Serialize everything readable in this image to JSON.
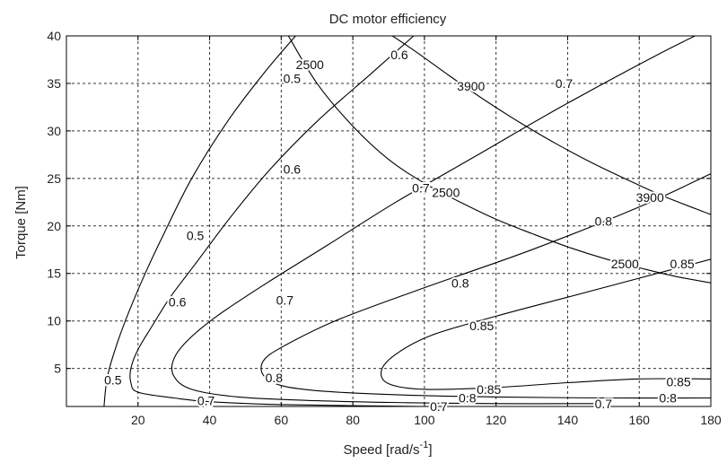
{
  "chart_data": {
    "type": "line",
    "title": "DC motor efficiency",
    "xlabel": "Speed [rad/s",
    "xlabel_sup": "-1",
    "xlabel_end": "]",
    "ylabel": "Torque [Nm]",
    "xlim": [
      0,
      180
    ],
    "ylim": [
      1,
      40
    ],
    "xticks": [
      20,
      40,
      60,
      80,
      100,
      120,
      140,
      160,
      180
    ],
    "yticks": [
      5,
      10,
      15,
      20,
      25,
      30,
      35,
      40
    ],
    "grid": true,
    "line_color": "#000000",
    "series": [
      {
        "kind": "efficiency",
        "level": "0.5",
        "x": [
          10.5,
          11,
          12,
          14.5,
          17.5,
          22,
          27,
          35,
          45,
          55,
          64
        ],
        "y": [
          1,
          3,
          5,
          8,
          11,
          15,
          19,
          25,
          31,
          36,
          40
        ]
      },
      {
        "kind": "efficiency",
        "level": "0.6",
        "x": [
          100,
          60,
          40,
          30,
          20,
          18,
          18,
          20,
          24,
          29,
          36,
          46,
          57,
          70,
          85,
          97
        ],
        "y": [
          1,
          1.2,
          1.5,
          1.9,
          2.5,
          3.5,
          5,
          7,
          9.5,
          12.5,
          16,
          21,
          26,
          31,
          36,
          40
        ]
      },
      {
        "kind": "efficiency",
        "level": "0.7",
        "x": [
          148,
          120,
          95,
          70,
          48,
          35,
          30,
          30,
          34,
          42,
          56,
          73,
          92,
          115,
          138,
          165,
          180
        ],
        "y": [
          1.3,
          1.3,
          1.4,
          1.6,
          2.0,
          2.8,
          4.2,
          6.0,
          8.0,
          10.5,
          14,
          18,
          22.5,
          27.5,
          32.5,
          38,
          40.8
        ]
      },
      {
        "kind": "efficiency",
        "level": "0.8",
        "x": [
          180,
          150,
          120,
          95,
          72,
          60,
          55,
          55,
          60,
          75,
          100,
          130,
          160,
          180
        ],
        "y": [
          1.9,
          1.9,
          2.0,
          2.2,
          2.6,
          3.2,
          4.3,
          5.8,
          7.2,
          10,
          13.5,
          17.5,
          22,
          25.5
        ]
      },
      {
        "kind": "efficiency",
        "level": "0.85",
        "x": [
          180,
          160,
          140,
          120,
          100,
          90,
          88,
          92,
          102,
          120,
          140,
          160,
          180
        ],
        "y": [
          3.9,
          3.9,
          3.5,
          3.0,
          2.8,
          3.4,
          4.8,
          6.5,
          8.5,
          10.5,
          12.5,
          14.5,
          16.5
        ]
      },
      {
        "kind": "current",
        "level": "2500",
        "x": [
          62,
          70,
          80,
          90,
          100,
          110,
          120,
          130,
          140,
          150,
          160,
          170,
          180
        ],
        "y": [
          40,
          35,
          30.5,
          27,
          24.5,
          22.5,
          20.7,
          19.2,
          17.8,
          16.6,
          15.6,
          14.7,
          14
        ]
      },
      {
        "kind": "current",
        "level": "3900",
        "x": [
          87,
          97,
          107,
          117,
          127,
          137,
          147,
          157,
          167,
          180
        ],
        "y": [
          41,
          38.5,
          35.8,
          33.2,
          30.8,
          28.6,
          26.6,
          24.8,
          23.1,
          21.2
        ]
      }
    ],
    "contour_labels": [
      {
        "text": "0.5",
        "x": 63,
        "y": 35.5
      },
      {
        "text": "0.5",
        "x": 36,
        "y": 19
      },
      {
        "text": "0.5",
        "x": 13,
        "y": 3.8
      },
      {
        "text": "0.6",
        "x": 93,
        "y": 38
      },
      {
        "text": "0.6",
        "x": 63,
        "y": 26
      },
      {
        "text": "0.6",
        "x": 31,
        "y": 12
      },
      {
        "text": "0.7",
        "x": 139,
        "y": 35
      },
      {
        "text": "0.7",
        "x": 99,
        "y": 24
      },
      {
        "text": "0.7",
        "x": 61,
        "y": 12.2
      },
      {
        "text": "0.7",
        "x": 39,
        "y": 1.6
      },
      {
        "text": "0.7",
        "x": 104,
        "y": 1.0
      },
      {
        "text": "0.7",
        "x": 150,
        "y": 1.3
      },
      {
        "text": "0.8",
        "x": 150,
        "y": 20.5
      },
      {
        "text": "0.8",
        "x": 110,
        "y": 14
      },
      {
        "text": "0.8",
        "x": 58,
        "y": 4
      },
      {
        "text": "0.8",
        "x": 112,
        "y": 1.9
      },
      {
        "text": "0.8",
        "x": 168,
        "y": 1.9
      },
      {
        "text": "0.85",
        "x": 116,
        "y": 9.5
      },
      {
        "text": "0.85",
        "x": 172,
        "y": 16
      },
      {
        "text": "0.85",
        "x": 118,
        "y": 2.8
      },
      {
        "text": "0.85",
        "x": 171,
        "y": 3.6
      },
      {
        "text": "2500",
        "x": 68,
        "y": 37
      },
      {
        "text": "2500",
        "x": 106,
        "y": 23.5
      },
      {
        "text": "2500",
        "x": 156,
        "y": 16
      },
      {
        "text": "3900",
        "x": 113,
        "y": 34.7
      },
      {
        "text": "3900",
        "x": 163,
        "y": 23
      }
    ]
  }
}
